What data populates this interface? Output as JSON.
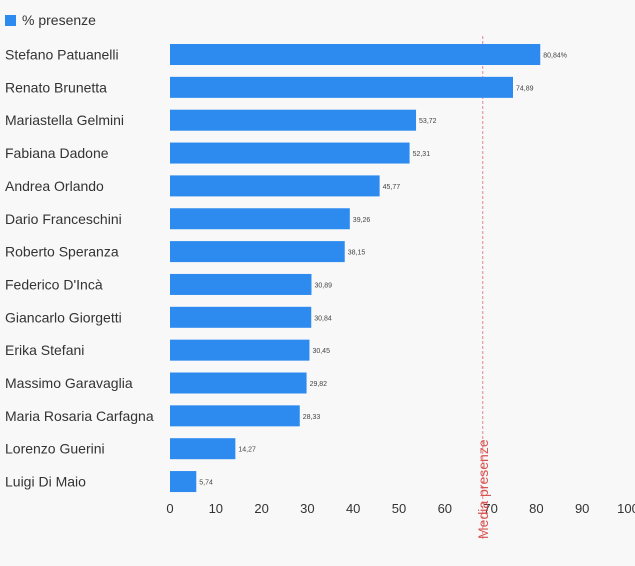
{
  "colors": {
    "bar": "#2d8bef",
    "avg_line": "#e06a7a",
    "avg_label": "#d9534f",
    "text": "#333333",
    "value_label": "#444444"
  },
  "legend": {
    "label": "% presenze",
    "icon": "square-swatch"
  },
  "chart_data": {
    "type": "bar",
    "orientation": "horizontal",
    "categories": [
      "Stefano Patuanelli",
      "Renato Brunetta",
      "Mariastella Gelmini",
      "Fabiana Dadone",
      "Andrea Orlando",
      "Dario Franceschini",
      "Roberto Speranza",
      "Federico D'Incà",
      "Giancarlo Giorgetti",
      "Erika Stefani",
      "Massimo Garavaglia",
      "Maria Rosaria Carfagna",
      "Lorenzo Guerini",
      "Luigi Di Maio"
    ],
    "values": [
      80.84,
      74.89,
      53.72,
      52.31,
      45.77,
      39.26,
      38.15,
      30.89,
      30.84,
      30.45,
      29.82,
      28.33,
      14.27,
      5.74
    ],
    "value_labels": [
      "80,84%",
      "74,89",
      "53,72",
      "52,31",
      "45,77",
      "39,26",
      "38,15",
      "30,89",
      "30,84",
      "30,45",
      "29,82",
      "28,33",
      "14,27",
      "5,74"
    ],
    "series": [
      {
        "name": "% presenze"
      }
    ],
    "xlim": [
      0,
      100
    ],
    "xticks": [
      "0",
      "10",
      "20",
      "30",
      "40",
      "50",
      "60",
      "70",
      "80",
      "90",
      "100"
    ],
    "reference_line": {
      "label": "Media presenze",
      "value": 68.3
    },
    "grid": false,
    "legend_position": "top-left"
  }
}
